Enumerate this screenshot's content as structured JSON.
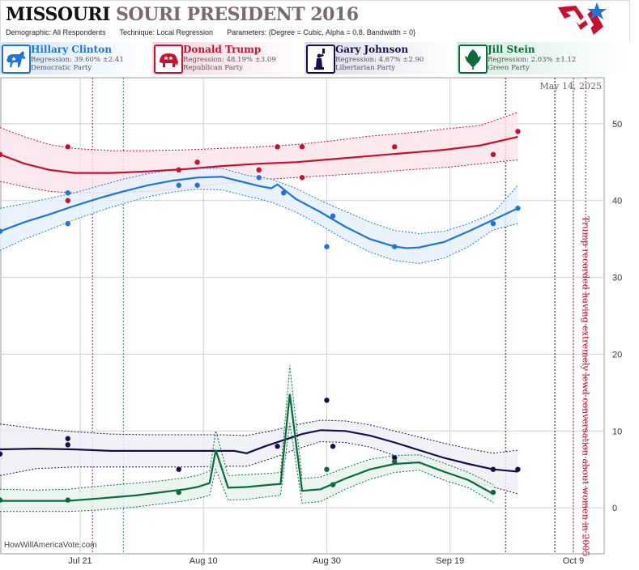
{
  "header": {
    "title_state": "MISSOURI",
    "title_sub": "SOURI",
    "title_rest": "PRESIDENT 2016",
    "demographic_label": "Demographic:",
    "demographic_value": "All Respondents",
    "technique_label": "Technique:",
    "technique_value": "Local Regression",
    "parameters_label": "Parameters:",
    "parameters_value": "{Degree = Cubic, Alpha = 0.8, Bandwidth = 0}"
  },
  "candidates": [
    {
      "name": "Hillary Clinton",
      "regression": "Regression: 39.60% ±2.41",
      "party": "Democratic Party",
      "color": "#1f74d8",
      "icon": "donkey-icon"
    },
    {
      "name": "Donald Trump",
      "regression": "Regression: 48.19% ±3.09",
      "party": "Republican Party",
      "color": "#c8102e",
      "icon": "elephant-icon"
    },
    {
      "name": "Gary Johnson",
      "regression": "Regression: 4.67% ±2.90",
      "party": "Libertarian Party",
      "color": "#14114a",
      "icon": "liberty-statue-icon"
    },
    {
      "name": "Jill Stein",
      "regression": "Regression: 2.03% ±1.12",
      "party": "Green Party",
      "color": "#0c6b3c",
      "icon": "leaf-icon"
    }
  ],
  "watermark": "HowWillAmericaVote.com",
  "chart_data": {
    "type": "line",
    "date_label": "May 14, 2025",
    "annotation": "Trump recorded having extremely lewd conversation about women in 2005",
    "x_ticks": [
      {
        "label": "Jul 21",
        "day": 21
      },
      {
        "label": "Aug 10",
        "day": 41
      },
      {
        "label": "Aug 30",
        "day": 61
      },
      {
        "label": "Sep 19",
        "day": 81
      },
      {
        "label": "Oct 9",
        "day": 101
      }
    ],
    "y_ticks": [
      0,
      10,
      20,
      30,
      40,
      50
    ],
    "xlim": [
      8,
      106
    ],
    "ylim": [
      -6,
      56
    ],
    "grid": true,
    "event_lines": [
      {
        "day": 23,
        "color": "#9b1b4a"
      },
      {
        "day": 28,
        "color": "#2a7a8a"
      },
      {
        "day": 90,
        "color": "#14114a"
      },
      {
        "day": 98,
        "color": "#14114a"
      },
      {
        "day": 101,
        "color": "#9b1b4a"
      },
      {
        "day": 103,
        "color": "#9b1b4a"
      }
    ],
    "series": [
      {
        "name": "Donald Trump",
        "color": "#c8102e",
        "band_fill": "#fbe3e8",
        "line": [
          [
            8,
            46
          ],
          [
            12,
            44.8
          ],
          [
            16,
            44
          ],
          [
            20,
            43.6
          ],
          [
            26,
            43.6
          ],
          [
            32,
            43.8
          ],
          [
            38,
            44.1
          ],
          [
            44,
            44.5
          ],
          [
            50,
            44.8
          ],
          [
            56,
            45
          ],
          [
            62,
            45.4
          ],
          [
            68,
            45.8
          ],
          [
            74,
            46.2
          ],
          [
            80,
            46.6
          ],
          [
            86,
            47.2
          ],
          [
            92,
            48.3
          ]
        ],
        "upper": [
          [
            8,
            49.5
          ],
          [
            12,
            48.3
          ],
          [
            16,
            47.3
          ],
          [
            20,
            46.8
          ],
          [
            26,
            46.5
          ],
          [
            32,
            46.5
          ],
          [
            38,
            46.6
          ],
          [
            44,
            46.8
          ],
          [
            50,
            47
          ],
          [
            56,
            47.3
          ],
          [
            62,
            47.8
          ],
          [
            68,
            48.4
          ],
          [
            74,
            48.8
          ],
          [
            80,
            49.3
          ],
          [
            86,
            49.8
          ],
          [
            92,
            51.5
          ]
        ],
        "lower": [
          [
            8,
            42.5
          ],
          [
            12,
            41.8
          ],
          [
            16,
            41.2
          ],
          [
            20,
            41
          ],
          [
            26,
            41
          ],
          [
            32,
            41.2
          ],
          [
            38,
            41.6
          ],
          [
            44,
            42.2
          ],
          [
            50,
            42.7
          ],
          [
            56,
            43
          ],
          [
            62,
            43.3
          ],
          [
            68,
            43.6
          ],
          [
            74,
            44
          ],
          [
            80,
            44.3
          ],
          [
            86,
            44.8
          ],
          [
            92,
            45.3
          ]
        ],
        "points": [
          [
            8,
            46
          ],
          [
            19,
            47
          ],
          [
            19,
            40
          ],
          [
            37,
            44
          ],
          [
            40,
            45
          ],
          [
            50,
            44
          ],
          [
            53,
            47
          ],
          [
            57,
            43
          ],
          [
            57,
            47
          ],
          [
            72,
            47
          ],
          [
            88,
            46
          ],
          [
            92,
            49
          ]
        ]
      },
      {
        "name": "Hillary Clinton",
        "color": "#1f74d8",
        "band_fill": "#e5f0fb",
        "line": [
          [
            8,
            36
          ],
          [
            12,
            37.2
          ],
          [
            16,
            38.2
          ],
          [
            20,
            39.3
          ],
          [
            24,
            40.3
          ],
          [
            28,
            41.2
          ],
          [
            32,
            42
          ],
          [
            36,
            42.6
          ],
          [
            40,
            43
          ],
          [
            44,
            43.1
          ],
          [
            47,
            42.5
          ],
          [
            50,
            41.9
          ],
          [
            52,
            41.6
          ],
          [
            53,
            42.1
          ],
          [
            56,
            40.2
          ],
          [
            60,
            38.5
          ],
          [
            64,
            36.6
          ],
          [
            68,
            35
          ],
          [
            72,
            34
          ],
          [
            74,
            33.8
          ],
          [
            76,
            33.9
          ],
          [
            80,
            34.6
          ],
          [
            84,
            36
          ],
          [
            88,
            37.5
          ],
          [
            92,
            39
          ]
        ],
        "upper": [
          [
            8,
            39
          ],
          [
            12,
            39.6
          ],
          [
            16,
            40.3
          ],
          [
            20,
            41
          ],
          [
            24,
            41.9
          ],
          [
            28,
            42.8
          ],
          [
            32,
            43.5
          ],
          [
            36,
            44
          ],
          [
            40,
            44.2
          ],
          [
            44,
            44.2
          ],
          [
            48,
            43.3
          ],
          [
            52,
            42.8
          ],
          [
            56,
            41.6
          ],
          [
            60,
            40
          ],
          [
            64,
            38.6
          ],
          [
            68,
            37.2
          ],
          [
            72,
            36.1
          ],
          [
            76,
            35.7
          ],
          [
            80,
            36
          ],
          [
            84,
            37
          ],
          [
            88,
            38.4
          ],
          [
            92,
            42
          ]
        ],
        "lower": [
          [
            8,
            33.5
          ],
          [
            12,
            35
          ],
          [
            16,
            36.2
          ],
          [
            20,
            37.5
          ],
          [
            24,
            38.6
          ],
          [
            28,
            39.6
          ],
          [
            32,
            40.5
          ],
          [
            36,
            41.1
          ],
          [
            40,
            41.5
          ],
          [
            44,
            41.4
          ],
          [
            48,
            40.6
          ],
          [
            52,
            39.8
          ],
          [
            56,
            38.5
          ],
          [
            60,
            36.8
          ],
          [
            64,
            34.9
          ],
          [
            68,
            33.3
          ],
          [
            72,
            32.2
          ],
          [
            76,
            31.8
          ],
          [
            80,
            32.5
          ],
          [
            84,
            34
          ],
          [
            88,
            36.2
          ],
          [
            92,
            37
          ]
        ],
        "points": [
          [
            8,
            36
          ],
          [
            19,
            41
          ],
          [
            19,
            37
          ],
          [
            37,
            42
          ],
          [
            40,
            42
          ],
          [
            50,
            43
          ],
          [
            54,
            41
          ],
          [
            61,
            34
          ],
          [
            62,
            38
          ],
          [
            72,
            34
          ],
          [
            88,
            37
          ],
          [
            92,
            39
          ]
        ]
      },
      {
        "name": "Gary Johnson",
        "color": "#14114a",
        "band_fill": "#efeef5",
        "line": [
          [
            8,
            7.6
          ],
          [
            14,
            7.7
          ],
          [
            20,
            7.6
          ],
          [
            26,
            7.4
          ],
          [
            32,
            7.4
          ],
          [
            38,
            7.4
          ],
          [
            44,
            7.4
          ],
          [
            46,
            7.4
          ],
          [
            48,
            7.1
          ],
          [
            51,
            8
          ],
          [
            54,
            8.8
          ],
          [
            57,
            9.6
          ],
          [
            60,
            10.1
          ],
          [
            64,
            10
          ],
          [
            68,
            9.4
          ],
          [
            72,
            8.5
          ],
          [
            76,
            7.5
          ],
          [
            80,
            6.5
          ],
          [
            84,
            5.7
          ],
          [
            88,
            5
          ],
          [
            92,
            4.7
          ]
        ],
        "upper": [
          [
            8,
            10.9
          ],
          [
            14,
            10.3
          ],
          [
            20,
            9.9
          ],
          [
            26,
            9.6
          ],
          [
            32,
            9.5
          ],
          [
            38,
            9.5
          ],
          [
            44,
            9.5
          ],
          [
            48,
            9.4
          ],
          [
            52,
            10
          ],
          [
            56,
            10.8
          ],
          [
            60,
            11.4
          ],
          [
            64,
            11.3
          ],
          [
            68,
            10.8
          ],
          [
            72,
            10
          ],
          [
            76,
            9.2
          ],
          [
            80,
            8.4
          ],
          [
            84,
            7.7
          ],
          [
            88,
            7.1
          ],
          [
            92,
            7.5
          ]
        ],
        "lower": [
          [
            8,
            4.2
          ],
          [
            14,
            5.1
          ],
          [
            20,
            5.3
          ],
          [
            26,
            5.3
          ],
          [
            32,
            5.3
          ],
          [
            38,
            5.3
          ],
          [
            44,
            5.4
          ],
          [
            48,
            5.4
          ],
          [
            52,
            6.4
          ],
          [
            56,
            7.6
          ],
          [
            60,
            8.6
          ],
          [
            64,
            8.5
          ],
          [
            68,
            7.9
          ],
          [
            72,
            6.8
          ],
          [
            76,
            5.7
          ],
          [
            80,
            4.6
          ],
          [
            84,
            3.6
          ],
          [
            88,
            2.7
          ],
          [
            92,
            1.8
          ]
        ],
        "points": [
          [
            8,
            7
          ],
          [
            19,
            9
          ],
          [
            19,
            8.2
          ],
          [
            37,
            5
          ],
          [
            53,
            8
          ],
          [
            61,
            14
          ],
          [
            62,
            8
          ],
          [
            72,
            6.5
          ],
          [
            88,
            5
          ],
          [
            92,
            5
          ]
        ]
      },
      {
        "name": "Jill Stein",
        "color": "#0c6b3c",
        "band_fill": "#e6f3ec",
        "line": [
          [
            8,
            0.9
          ],
          [
            14,
            0.9
          ],
          [
            19,
            0.9
          ],
          [
            24,
            1.2
          ],
          [
            30,
            1.6
          ],
          [
            34,
            2
          ],
          [
            38,
            2.4
          ],
          [
            40,
            2.7
          ],
          [
            42,
            3.2
          ],
          [
            43,
            7.5
          ],
          [
            45,
            2.6
          ],
          [
            48,
            2.7
          ],
          [
            52,
            3
          ],
          [
            53.5,
            3.1
          ],
          [
            55,
            14.8
          ],
          [
            57,
            2.2
          ],
          [
            60,
            2.4
          ],
          [
            64,
            3.8
          ],
          [
            68,
            5
          ],
          [
            72,
            5.7
          ],
          [
            76,
            5.9
          ],
          [
            80,
            4.7
          ],
          [
            84,
            3.6
          ],
          [
            88,
            1.8
          ]
        ],
        "upper": [
          [
            8,
            2.4
          ],
          [
            14,
            2.3
          ],
          [
            19,
            2.4
          ],
          [
            24,
            2.8
          ],
          [
            30,
            3.2
          ],
          [
            34,
            3.5
          ],
          [
            38,
            3.9
          ],
          [
            40,
            4.2
          ],
          [
            42,
            4.8
          ],
          [
            43,
            10
          ],
          [
            45,
            4.2
          ],
          [
            48,
            4.3
          ],
          [
            52,
            4.5
          ],
          [
            53.5,
            4.6
          ],
          [
            55,
            18.5
          ],
          [
            57,
            3.8
          ],
          [
            60,
            4
          ],
          [
            64,
            5.2
          ],
          [
            68,
            6.3
          ],
          [
            72,
            6.8
          ],
          [
            76,
            6.9
          ],
          [
            80,
            5.8
          ],
          [
            84,
            4.6
          ],
          [
            88,
            3
          ]
        ],
        "lower": [
          [
            8,
            -0.5
          ],
          [
            14,
            -0.5
          ],
          [
            19,
            -0.5
          ],
          [
            24,
            -0.3
          ],
          [
            30,
            0.1
          ],
          [
            34,
            0.5
          ],
          [
            38,
            0.9
          ],
          [
            40,
            1.2
          ],
          [
            42,
            1.6
          ],
          [
            43,
            5
          ],
          [
            45,
            1
          ],
          [
            48,
            1.1
          ],
          [
            52,
            1.5
          ],
          [
            53.5,
            1.6
          ],
          [
            55,
            11
          ],
          [
            57,
            0.6
          ],
          [
            60,
            0.8
          ],
          [
            64,
            2.4
          ],
          [
            68,
            3.7
          ],
          [
            72,
            4.6
          ],
          [
            76,
            4.9
          ],
          [
            80,
            3.6
          ],
          [
            84,
            2.6
          ],
          [
            88,
            0.7
          ]
        ],
        "points": [
          [
            8,
            1
          ],
          [
            19,
            1
          ],
          [
            37,
            2
          ],
          [
            61,
            5
          ],
          [
            62,
            3
          ],
          [
            72,
            6
          ],
          [
            88,
            2
          ]
        ]
      }
    ]
  }
}
